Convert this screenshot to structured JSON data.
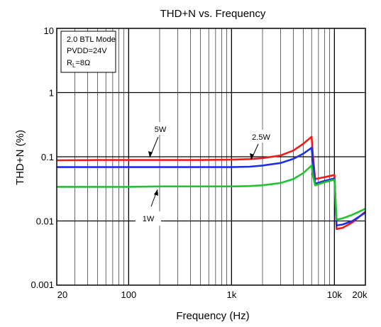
{
  "chart_data": {
    "type": "line",
    "title": "THD+N vs. Frequency",
    "xlabel": "Frequency (Hz)",
    "ylabel": "THD+N (%)",
    "x_scale": "log",
    "y_scale": "log",
    "xlim": [
      20,
      20000
    ],
    "ylim": [
      0.001,
      10
    ],
    "grid": true,
    "x_ticks": [
      {
        "value": 20,
        "label": "20"
      },
      {
        "value": 100,
        "label": "100"
      },
      {
        "value": 1000,
        "label": "1k"
      },
      {
        "value": 10000,
        "label": "10k"
      },
      {
        "value": 20000,
        "label": "20k"
      }
    ],
    "y_ticks": [
      {
        "value": 0.001,
        "label": "0.001"
      },
      {
        "value": 0.01,
        "label": "0.01"
      },
      {
        "value": 0.1,
        "label": "0.1"
      },
      {
        "value": 1,
        "label": "1"
      },
      {
        "value": 10,
        "label": "10"
      }
    ],
    "conditions": {
      "line1": "2.0 BTL Mode",
      "line2": "PVDD=24V",
      "line3_main": "R",
      "line3_sub": "L",
      "line3_rest": "=8Ω"
    },
    "series": [
      {
        "name": "5W",
        "color": "#ee1c1c",
        "x": [
          20,
          50,
          100,
          200,
          500,
          1000,
          1500,
          2000,
          3000,
          4000,
          5000,
          6000,
          6200,
          6500,
          8000,
          10000,
          10500,
          12000,
          15000,
          20000
        ],
        "y": [
          0.088,
          0.089,
          0.089,
          0.089,
          0.089,
          0.09,
          0.092,
          0.095,
          0.105,
          0.125,
          0.16,
          0.205,
          0.1,
          0.045,
          0.048,
          0.052,
          0.0075,
          0.0078,
          0.0095,
          0.014
        ]
      },
      {
        "name": "2.5W",
        "color": "#1c2ee6",
        "x": [
          20,
          50,
          100,
          200,
          500,
          1000,
          1500,
          2000,
          3000,
          4000,
          5000,
          6000,
          6200,
          6500,
          8000,
          10000,
          10500,
          12000,
          15000,
          20000
        ],
        "y": [
          0.069,
          0.069,
          0.069,
          0.069,
          0.069,
          0.069,
          0.07,
          0.073,
          0.08,
          0.093,
          0.112,
          0.138,
          0.08,
          0.038,
          0.042,
          0.046,
          0.0085,
          0.0088,
          0.01,
          0.0135
        ]
      },
      {
        "name": "1W",
        "color": "#22c22e",
        "x": [
          20,
          50,
          100,
          200,
          500,
          1000,
          1500,
          2000,
          3000,
          4000,
          5000,
          6000,
          6200,
          6500,
          8000,
          10000,
          10500,
          12000,
          15000,
          20000
        ],
        "y": [
          0.034,
          0.034,
          0.034,
          0.0345,
          0.0345,
          0.0345,
          0.035,
          0.036,
          0.039,
          0.045,
          0.056,
          0.073,
          0.05,
          0.036,
          0.04,
          0.044,
          0.0105,
          0.011,
          0.0125,
          0.0155
        ]
      }
    ],
    "annotations": [
      {
        "series": "5W",
        "text": "5W"
      },
      {
        "series": "2.5W",
        "text": "2.5W"
      },
      {
        "series": "1W",
        "text": "1W"
      }
    ]
  }
}
